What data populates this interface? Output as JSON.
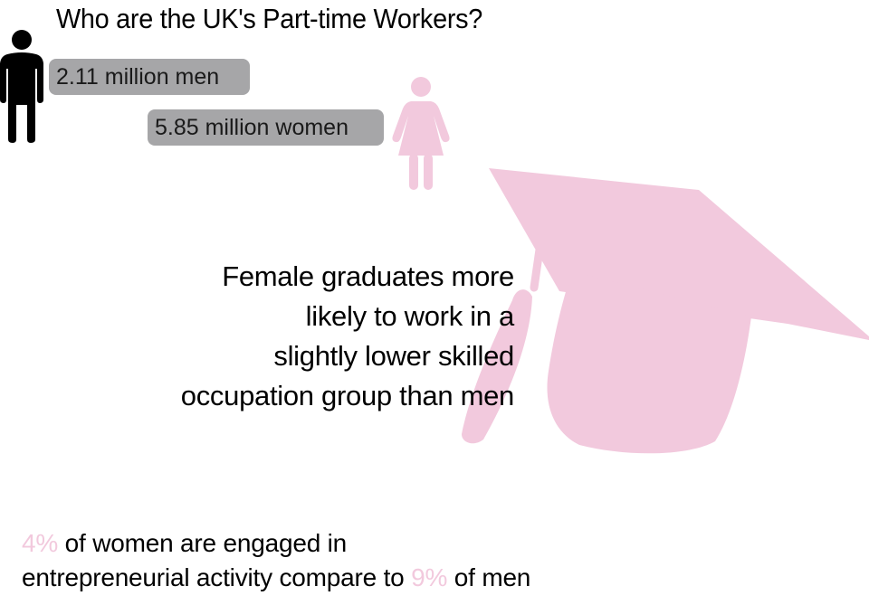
{
  "title": "Who are the UK's Part-time Workers?",
  "men": {
    "label": "2.11 million men",
    "icon": "man-icon",
    "color": "#000000"
  },
  "women": {
    "label": "5.85 million women",
    "icon": "woman-icon",
    "color": "#f2c9dd"
  },
  "pill_color": "#a6a6a8",
  "graduates": {
    "icon": "graduation-cap-icon",
    "color": "#f2c9dd",
    "lines": [
      "Female graduates more",
      "likely to work in a",
      "slightly lower skilled",
      "occupation group than men"
    ]
  },
  "entrepreneurial": {
    "women_pct": "4%",
    "text_1": " of women are engaged in",
    "text_2": "entrepreneurial activity compare to ",
    "men_pct": "9%",
    "text_3": " of men"
  }
}
